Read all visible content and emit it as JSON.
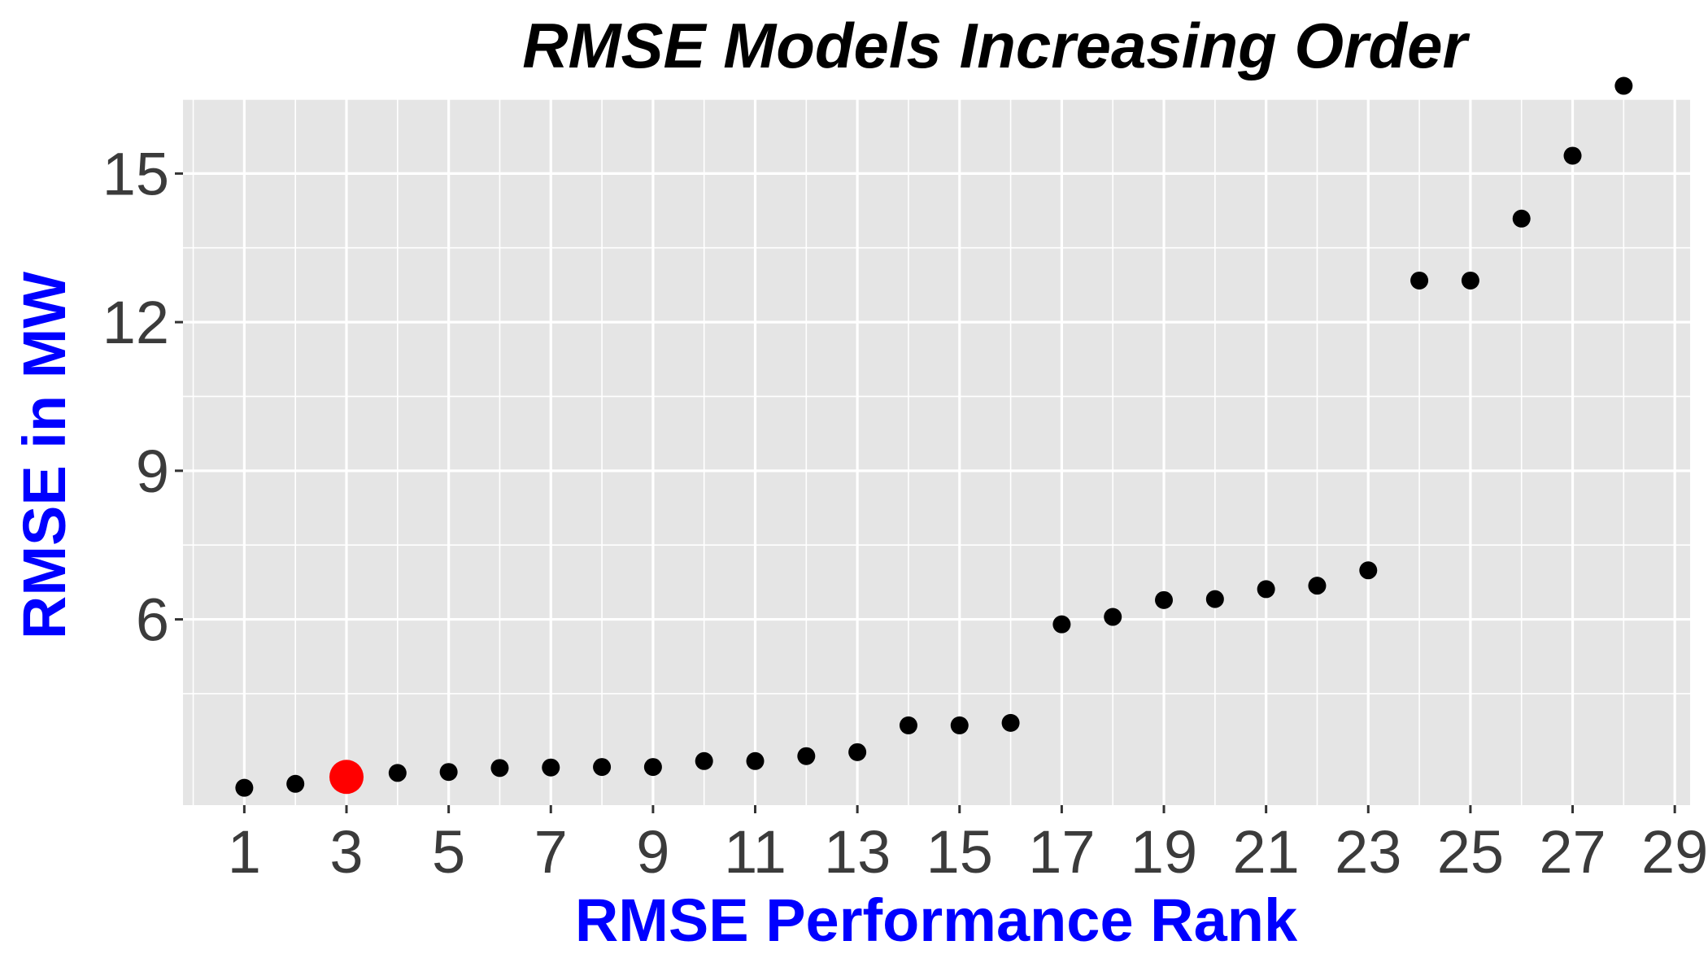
{
  "chart_data": {
    "type": "scatter",
    "title": "RMSE Models Increasing Order",
    "xlabel": "RMSE Performance Rank",
    "ylabel": "RMSE in MW",
    "xlim": [
      -0.2,
      29.3
    ],
    "ylim": [
      2.25,
      16.5
    ],
    "x_ticks": [
      1,
      3,
      5,
      7,
      9,
      11,
      13,
      15,
      17,
      19,
      21,
      23,
      25,
      27,
      29
    ],
    "x_tick_labels": [
      "1",
      "3",
      "5",
      "7",
      "9",
      "11",
      "13",
      "15",
      "17",
      "19",
      "21",
      "23",
      "25",
      "27",
      "29"
    ],
    "y_ticks": [
      6,
      9,
      12,
      15
    ],
    "y_tick_labels": [
      "6",
      "9",
      "12",
      "15"
    ],
    "grid": true,
    "panel_background": "#E5E5E5",
    "grid_color": "#FFFFFF",
    "axis_title_color": "#0000FF",
    "series": [
      {
        "color": "#000000",
        "x": [
          1,
          2,
          4,
          5,
          6,
          7,
          8,
          9,
          10,
          11,
          12,
          13,
          14,
          15,
          16,
          17,
          18,
          19,
          20,
          21,
          22,
          23,
          24,
          25,
          26,
          27,
          28
        ],
        "y": [
          2.6,
          2.68,
          2.9,
          2.92,
          3.0,
          3.01,
          3.02,
          3.02,
          3.14,
          3.14,
          3.24,
          3.32,
          3.86,
          3.86,
          3.91,
          5.9,
          6.05,
          6.39,
          6.41,
          6.61,
          6.68,
          6.99,
          12.84,
          12.84,
          14.09,
          15.36,
          16.77
        ]
      },
      {
        "color": "#FF0000",
        "highlight": true,
        "x": [
          3
        ],
        "y": [
          2.82
        ]
      }
    ]
  }
}
